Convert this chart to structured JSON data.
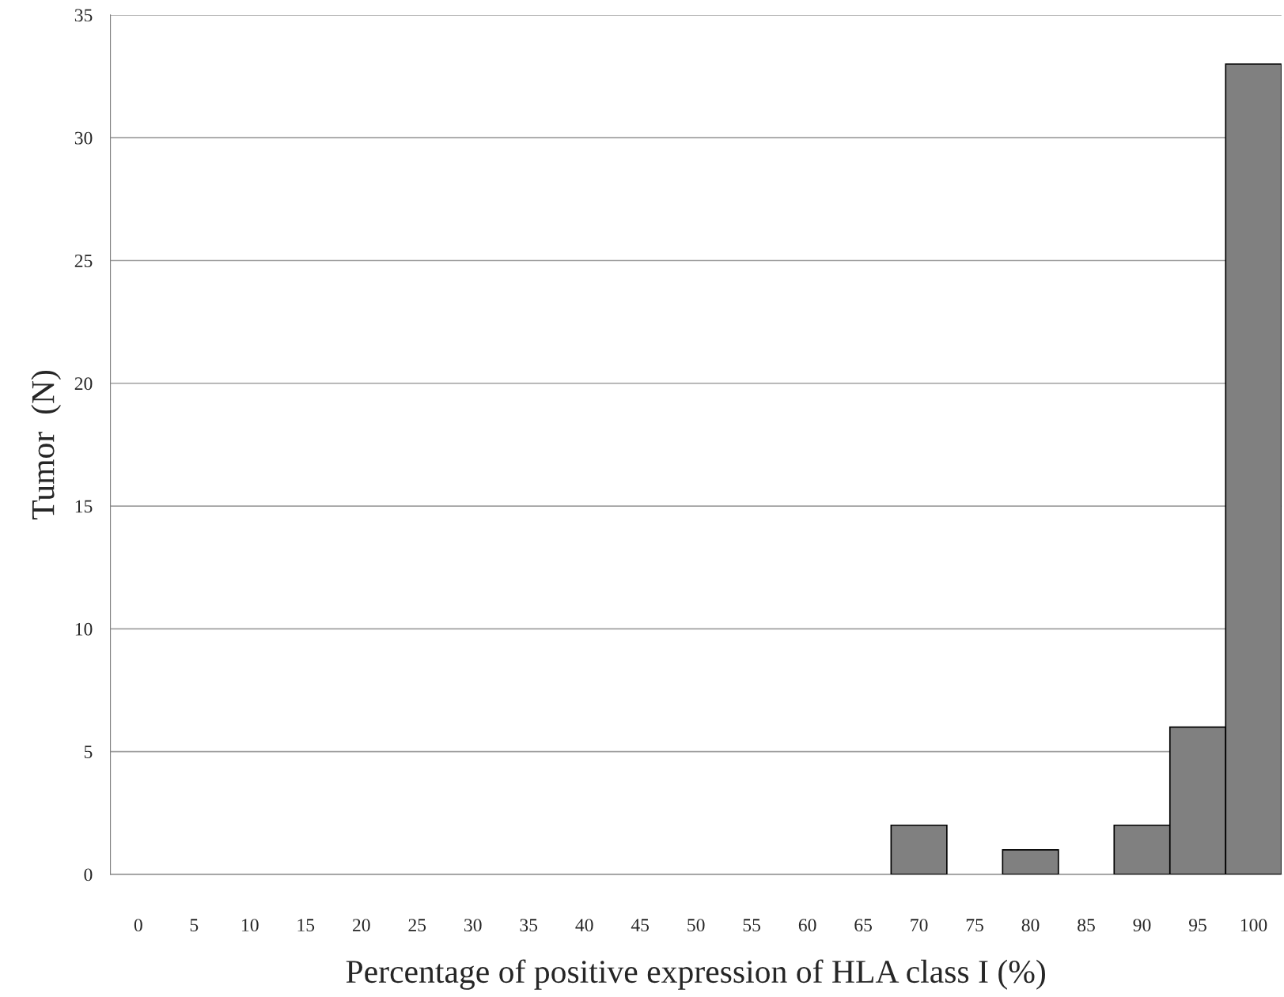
{
  "chart_data": {
    "type": "bar",
    "xlabel": "Percentage of positive expression of HLA class I (%)",
    "ylabel": "Tumor  (N)",
    "categories": [
      "0",
      "5",
      "10",
      "15",
      "20",
      "25",
      "30",
      "35",
      "40",
      "45",
      "50",
      "55",
      "60",
      "65",
      "70",
      "75",
      "80",
      "85",
      "90",
      "95",
      "100"
    ],
    "series": [
      {
        "color": "#808080",
        "values": [
          0,
          0,
          0,
          0,
          0,
          0,
          0,
          0,
          0,
          0,
          0,
          0,
          0,
          0,
          2,
          0,
          1,
          0,
          2,
          6,
          33
        ]
      }
    ],
    "ylim": [
      0,
      35
    ],
    "yticks": [
      0,
      5,
      10,
      15,
      20,
      25,
      30,
      35
    ],
    "grid": "y"
  }
}
